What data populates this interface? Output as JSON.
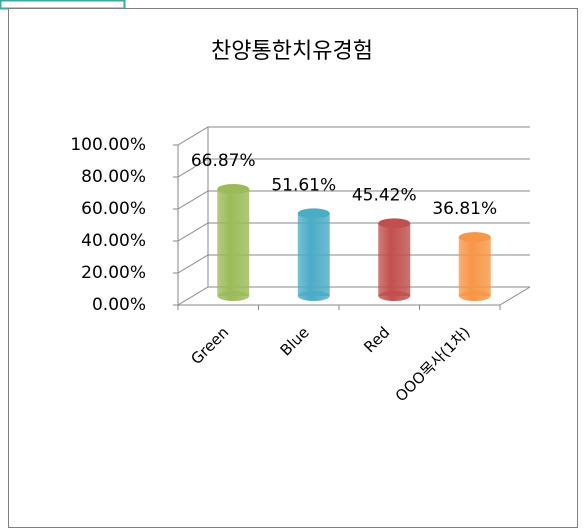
{
  "chart_data": {
    "type": "bar",
    "title": "찬양통한치유경험",
    "categories": [
      "Green",
      "Blue",
      "Red",
      "OOO목사(1차)"
    ],
    "values": [
      66.87,
      51.61,
      45.42,
      36.81
    ],
    "value_labels": [
      "66.87%",
      "51.61%",
      "45.42%",
      "36.81%"
    ],
    "colors": [
      "#9bbb59",
      "#4bacc6",
      "#c0504d",
      "#f79646"
    ],
    "ylim": [
      0,
      100
    ],
    "yticks": [
      {
        "value": 0,
        "label": "0.00%"
      },
      {
        "value": 20,
        "label": "20.00%"
      },
      {
        "value": 40,
        "label": "40.00%"
      },
      {
        "value": 60,
        "label": "60.00%"
      },
      {
        "value": 80,
        "label": "80.00%"
      },
      {
        "value": 100,
        "label": "100.00%"
      }
    ],
    "grid": true
  }
}
